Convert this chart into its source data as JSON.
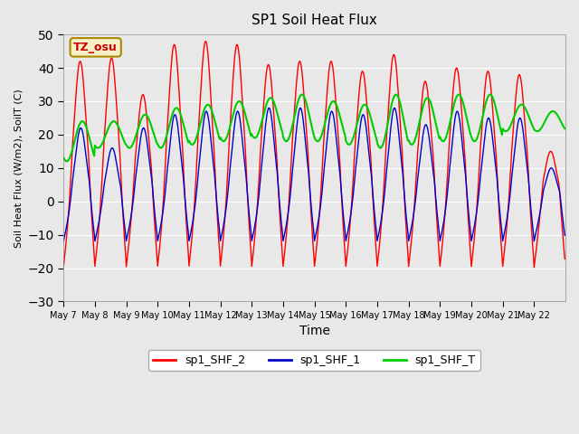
{
  "title": "SP1 Soil Heat Flux",
  "xlabel": "Time",
  "ylabel": "Soil Heat Flux (W/m2), SoilT (C)",
  "ylim": [
    -30,
    50
  ],
  "yticks": [
    -30,
    -20,
    -10,
    0,
    10,
    20,
    30,
    40,
    50
  ],
  "bg_color": "#e0e0e0",
  "plot_bg_color": "#e8e8e8",
  "tz_label": "TZ_osu",
  "tz_box_color": "#f5f0c8",
  "tz_text_color": "#cc0000",
  "tz_border_color": "#aa8800",
  "legend_entries": [
    "sp1_SHF_2",
    "sp1_SHF_1",
    "sp1_SHF_T"
  ],
  "line_colors": [
    "#ff0000",
    "#0000cc",
    "#00cc00"
  ],
  "n_days": 16,
  "start_day": 7,
  "x_tick_positions": [
    0,
    1,
    2,
    3,
    4,
    5,
    6,
    7,
    8,
    9,
    10,
    11,
    12,
    13,
    14,
    15
  ],
  "x_tick_labels": [
    "May 7",
    "May 8",
    "May 9",
    "May 10",
    "May 11",
    "May 12",
    "May 13",
    "May 14",
    "May 15",
    "May 16",
    "May 17",
    "May 18",
    "May 19",
    "May 20",
    "May 21",
    "May 22"
  ],
  "shf2_peaks": [
    42,
    43,
    32,
    47,
    48,
    47,
    41,
    42,
    42,
    39,
    44,
    36,
    40,
    39,
    38,
    15
  ],
  "shf1_peaks": [
    22,
    16,
    22,
    26,
    27,
    27,
    28,
    28,
    27,
    26,
    28,
    23,
    27,
    25,
    25,
    10
  ],
  "shf_t_bases": [
    18,
    20,
    21,
    22,
    23,
    24,
    25,
    25,
    24,
    23,
    24,
    24,
    25,
    25,
    25,
    24
  ],
  "shf_t_amps": [
    6,
    4,
    5,
    6,
    6,
    6,
    6,
    7,
    6,
    6,
    8,
    7,
    7,
    7,
    4,
    3
  ]
}
